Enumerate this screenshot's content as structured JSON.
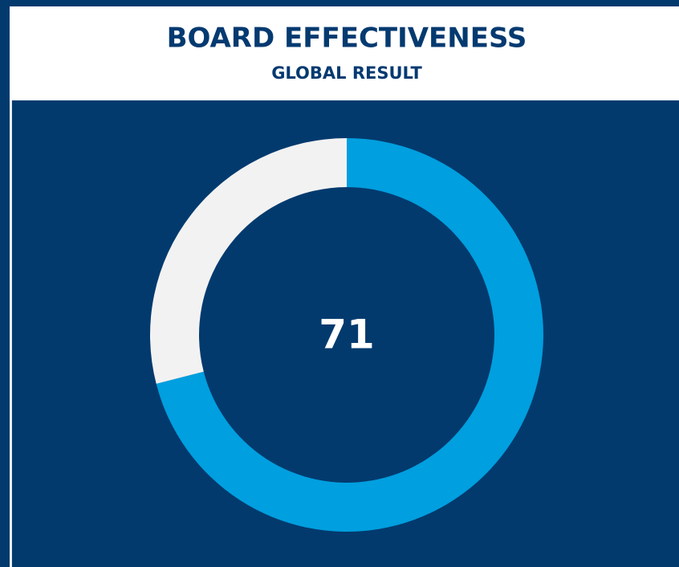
{
  "chart_data": {
    "type": "donut",
    "title": "BOARD EFFECTIVENESS",
    "subtitle": "GLOBAL RESULT",
    "values": [
      71,
      29
    ],
    "colors": [
      "#009fdf",
      "#f2f2f2"
    ]
  }
}
